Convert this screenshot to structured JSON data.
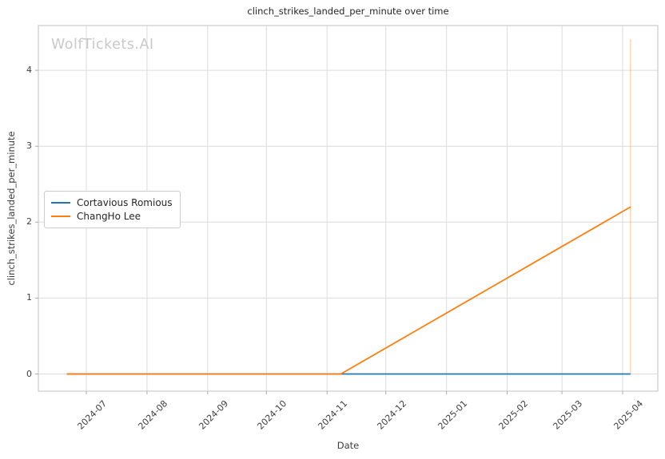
{
  "watermark": "WolfTickets.AI",
  "colors": {
    "background": "#ffffff",
    "grid": "#dcdcdc",
    "spine": "#cccccc",
    "tick_mark": "#aaaaaa",
    "text": "#3d3d3d",
    "title": "#262626",
    "watermark": "#c9c9c9",
    "series_blue": "#1f77b4",
    "series_orange": "#ff7f0e"
  },
  "chart_data": {
    "type": "line",
    "title": "clinch_strikes_landed_per_minute over time",
    "xlabel": "Date",
    "ylabel": "clinch_strikes_landed_per_minute",
    "grid": true,
    "legend_position": "center-left",
    "x_tick_labels": [
      "2024-07",
      "2024-08",
      "2024-09",
      "2024-10",
      "2024-11",
      "2024-12",
      "2025-01",
      "2025-02",
      "2025-03",
      "2025-04"
    ],
    "y_ticks": [
      0,
      1,
      2,
      3,
      4
    ],
    "ylim": [
      -0.23,
      4.59
    ],
    "series": [
      {
        "name": "Cortavious Romious",
        "color": "#1f77b4",
        "points": [
          {
            "date": "2024-06-21",
            "value": 0
          },
          {
            "date": "2024-11-08",
            "value": 0
          },
          {
            "date": "2025-04-05",
            "value": 0
          }
        ]
      },
      {
        "name": "ChangHo Lee",
        "color": "#ff7f0e",
        "points": [
          {
            "date": "2024-06-21",
            "value": 0
          },
          {
            "date": "2024-11-08",
            "value": 0
          },
          {
            "date": "2025-04-05",
            "value": 2.2
          }
        ]
      }
    ],
    "event_marker_line": {
      "date": "2025-04-05",
      "value_start": 0,
      "value_end": 4.41,
      "color": "#ff7f0e",
      "opacity": 0.35
    }
  }
}
